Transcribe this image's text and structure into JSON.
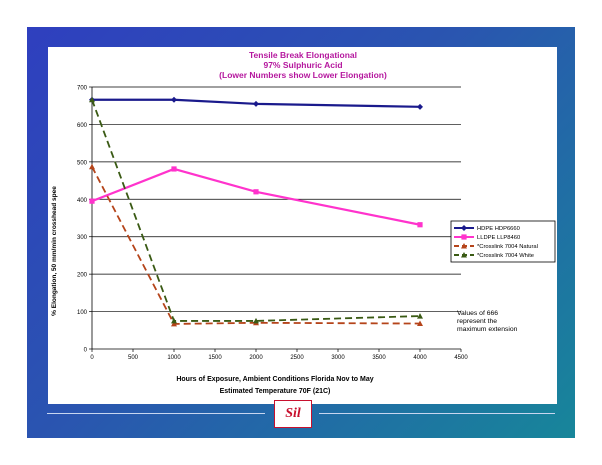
{
  "chart_data": {
    "type": "line",
    "title": [
      "Tensile Break Elongational",
      "97% Sulphuric Acid",
      "(Lower Numbers show Lower Elongation)"
    ],
    "xlabel": "Hours of Exposure, Ambient Conditions Florida Nov to May",
    "xlabel2": "Estimated Temperature 70F (21C)",
    "ylabel": "% Elongation, 50 mm/min crosshead spee",
    "xlim": [
      0,
      4500
    ],
    "ylim": [
      0,
      700
    ],
    "xticks": [
      0,
      500,
      1000,
      1500,
      2000,
      2500,
      3000,
      3500,
      4000,
      4500
    ],
    "yticks": [
      0,
      100,
      200,
      300,
      400,
      500,
      600,
      700
    ],
    "grid": "horizontal",
    "legend_position": "right",
    "series": [
      {
        "name": "HDPE HDP6660",
        "color": "#1a1a8c",
        "dash": "solid",
        "marker": "diamond",
        "x": [
          0,
          1000,
          2000,
          4000
        ],
        "y": [
          666,
          666,
          655,
          647
        ]
      },
      {
        "name": "LLDPE LLP8460",
        "color": "#ff33cc",
        "dash": "solid",
        "marker": "square",
        "x": [
          0,
          1000,
          2000,
          4000
        ],
        "y": [
          395,
          481,
          420,
          332
        ]
      },
      {
        "name": "*Crosslink 7004 Natural",
        "color": "#b5441a",
        "dash": "dashed",
        "marker": "triangle",
        "x": [
          0,
          1000,
          2000,
          4000
        ],
        "y": [
          487,
          67,
          70,
          68
        ]
      },
      {
        "name": "*Crosslink 7004 White",
        "color": "#3a5a14",
        "dash": "dashed",
        "marker": "triangle",
        "x": [
          0,
          1000,
          2000,
          4000
        ],
        "y": [
          666,
          75,
          75,
          88
        ]
      }
    ],
    "annotation": [
      "Values of 666",
      "represent the",
      "maximum extension"
    ]
  },
  "logo": {
    "text": "Sil"
  }
}
